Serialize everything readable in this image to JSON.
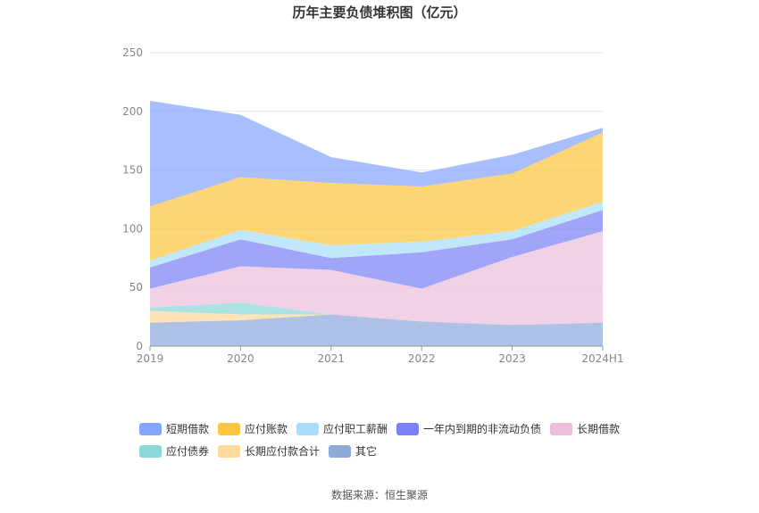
{
  "chart_data": {
    "type": "area",
    "stacked": true,
    "title": "历年主要负债堆积图（亿元）",
    "xlabel": "",
    "ylabel": "",
    "categories": [
      "2019",
      "2020",
      "2021",
      "2022",
      "2023",
      "2024H1"
    ],
    "yticks": [
      "0",
      "50",
      "100",
      "150",
      "200",
      "250"
    ],
    "ylim": [
      0,
      250
    ],
    "grid": true,
    "legend_position": "bottom",
    "series": [
      {
        "name": "其它",
        "color": "#8fa9dc",
        "values": [
          20,
          22,
          27,
          21,
          18,
          20
        ]
      },
      {
        "name": "长期应付款合计",
        "color": "#ffd99c",
        "values": [
          10,
          5,
          0,
          0,
          0,
          0
        ]
      },
      {
        "name": "应付债券",
        "color": "#8ad8d8",
        "values": [
          3,
          10,
          0,
          0,
          0,
          0
        ]
      },
      {
        "name": "长期借款",
        "color": "#ecbfdd",
        "values": [
          16,
          31,
          38,
          28,
          58,
          78
        ]
      },
      {
        "name": "一年内到期的非流动负债",
        "color": "#7b82f4",
        "values": [
          18,
          23,
          10,
          31,
          15,
          18
        ]
      },
      {
        "name": "应付职工薪酬",
        "color": "#a9def8",
        "values": [
          6,
          8,
          11,
          9,
          7,
          7
        ]
      },
      {
        "name": "应付账款",
        "color": "#ffc640",
        "values": [
          46,
          45,
          53,
          47,
          49,
          59
        ]
      },
      {
        "name": "短期借款",
        "color": "#87a5fc",
        "values": [
          90,
          53,
          22,
          12,
          16,
          4
        ]
      }
    ],
    "legend_order": [
      "短期借款",
      "应付账款",
      "应付职工薪酬",
      "一年内到期的非流动负债",
      "长期借款",
      "应付债券",
      "长期应付款合计",
      "其它"
    ]
  },
  "source": "数据来源：恒生聚源"
}
